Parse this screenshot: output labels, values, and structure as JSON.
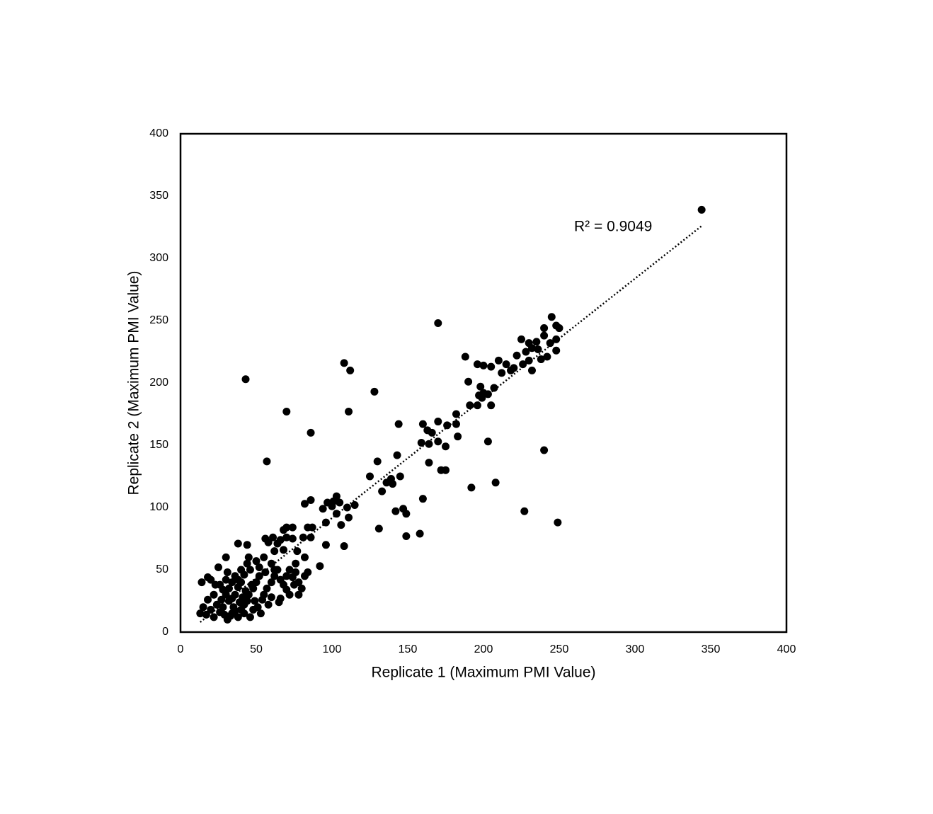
{
  "chart_data": {
    "type": "scatter",
    "x_label": "Replicate 1 (Maximum PMI Value)",
    "y_label": "Replicate 2 (Maximum PMI Value)",
    "annotation": "R² = 0.9049",
    "color": "#000000",
    "xlim": [
      0,
      400
    ],
    "ylim": [
      0,
      400
    ],
    "xticks": [
      0,
      50,
      100,
      150,
      200,
      250,
      300,
      350,
      400
    ],
    "yticks": [
      0,
      50,
      100,
      150,
      200,
      250,
      300,
      350,
      400
    ],
    "x": [
      344,
      170,
      43,
      108,
      112,
      128,
      70,
      111,
      86,
      57,
      144,
      227,
      249,
      240,
      192,
      208,
      203,
      131,
      149,
      158,
      160,
      142,
      147,
      149,
      108,
      96,
      92,
      106,
      245,
      240,
      248,
      250,
      225,
      230,
      235,
      240,
      232,
      228,
      222,
      236,
      244,
      248,
      248,
      242,
      238,
      230,
      226,
      232,
      220,
      215,
      210,
      212,
      218,
      205,
      200,
      196,
      188,
      207,
      203,
      198,
      200,
      197,
      205,
      191,
      196,
      199,
      190,
      182,
      182,
      183,
      176,
      170,
      163,
      166,
      160,
      170,
      164,
      159,
      175,
      172,
      175,
      164,
      143,
      145,
      139,
      136,
      140,
      130,
      125,
      133,
      115,
      110,
      111,
      103,
      101,
      105,
      97,
      94,
      96,
      103,
      100,
      82,
      86,
      84,
      87,
      86,
      81,
      74,
      70,
      68,
      70,
      74,
      66,
      61,
      56,
      58,
      64,
      62,
      68,
      77,
      76,
      82,
      38,
      44,
      30,
      25,
      18,
      14,
      20,
      23,
      28,
      30,
      32,
      35,
      34,
      38,
      40,
      42,
      45,
      48,
      50,
      52,
      46,
      44,
      40,
      36,
      34,
      30,
      26,
      22,
      18,
      15,
      13,
      17,
      20,
      24,
      27,
      29,
      31,
      33,
      36,
      39,
      41,
      43,
      47,
      49,
      51,
      53,
      46,
      55,
      57,
      60,
      62,
      64,
      66,
      68,
      70,
      72,
      74,
      76,
      78,
      80,
      78,
      72,
      60,
      55,
      50,
      45,
      42,
      38,
      36,
      34,
      28,
      26,
      22,
      58,
      60,
      65,
      66,
      70,
      75,
      82,
      84,
      62,
      56,
      52,
      40,
      38,
      32,
      31,
      42,
      44,
      48,
      54
    ],
    "values": [
      339,
      248,
      203,
      216,
      210,
      193,
      177,
      177,
      160,
      137,
      167,
      97,
      88,
      146,
      116,
      120,
      153,
      83,
      77,
      79,
      107,
      97,
      99,
      95,
      69,
      70,
      53,
      86,
      253,
      244,
      246,
      244,
      235,
      232,
      233,
      238,
      228,
      225,
      222,
      227,
      232,
      235,
      226,
      221,
      219,
      218,
      215,
      210,
      212,
      215,
      218,
      208,
      210,
      213,
      214,
      215,
      221,
      196,
      191,
      197,
      192,
      190,
      182,
      182,
      182,
      188,
      201,
      175,
      167,
      157,
      166,
      169,
      162,
      160,
      167,
      153,
      151,
      152,
      149,
      130,
      130,
      136,
      142,
      125,
      123,
      120,
      119,
      137,
      125,
      113,
      102,
      100,
      92,
      109,
      105,
      104,
      104,
      99,
      88,
      95,
      101,
      103,
      106,
      84,
      84,
      76,
      76,
      84,
      84,
      82,
      76,
      75,
      74,
      76,
      75,
      72,
      71,
      65,
      66,
      65,
      55,
      60,
      71,
      70,
      60,
      52,
      44,
      40,
      42,
      38,
      34,
      30,
      25,
      20,
      15,
      12,
      18,
      22,
      30,
      35,
      40,
      45,
      50,
      55,
      50,
      45,
      40,
      42,
      38,
      30,
      26,
      20,
      15,
      14,
      18,
      22,
      26,
      14,
      10,
      13,
      17,
      24,
      28,
      33,
      38,
      25,
      20,
      15,
      12,
      30,
      35,
      40,
      45,
      50,
      42,
      38,
      34,
      30,
      44,
      48,
      40,
      35,
      30,
      50,
      55,
      60,
      57,
      60,
      46,
      36,
      30,
      27,
      20,
      16,
      12,
      22,
      28,
      24,
      27,
      45,
      38,
      45,
      48,
      50,
      48,
      52,
      40,
      42,
      35,
      48,
      15,
      25,
      18,
      26
    ],
    "trendline": {
      "x": [
        13,
        344
      ],
      "values": [
        8,
        326
      ]
    }
  }
}
